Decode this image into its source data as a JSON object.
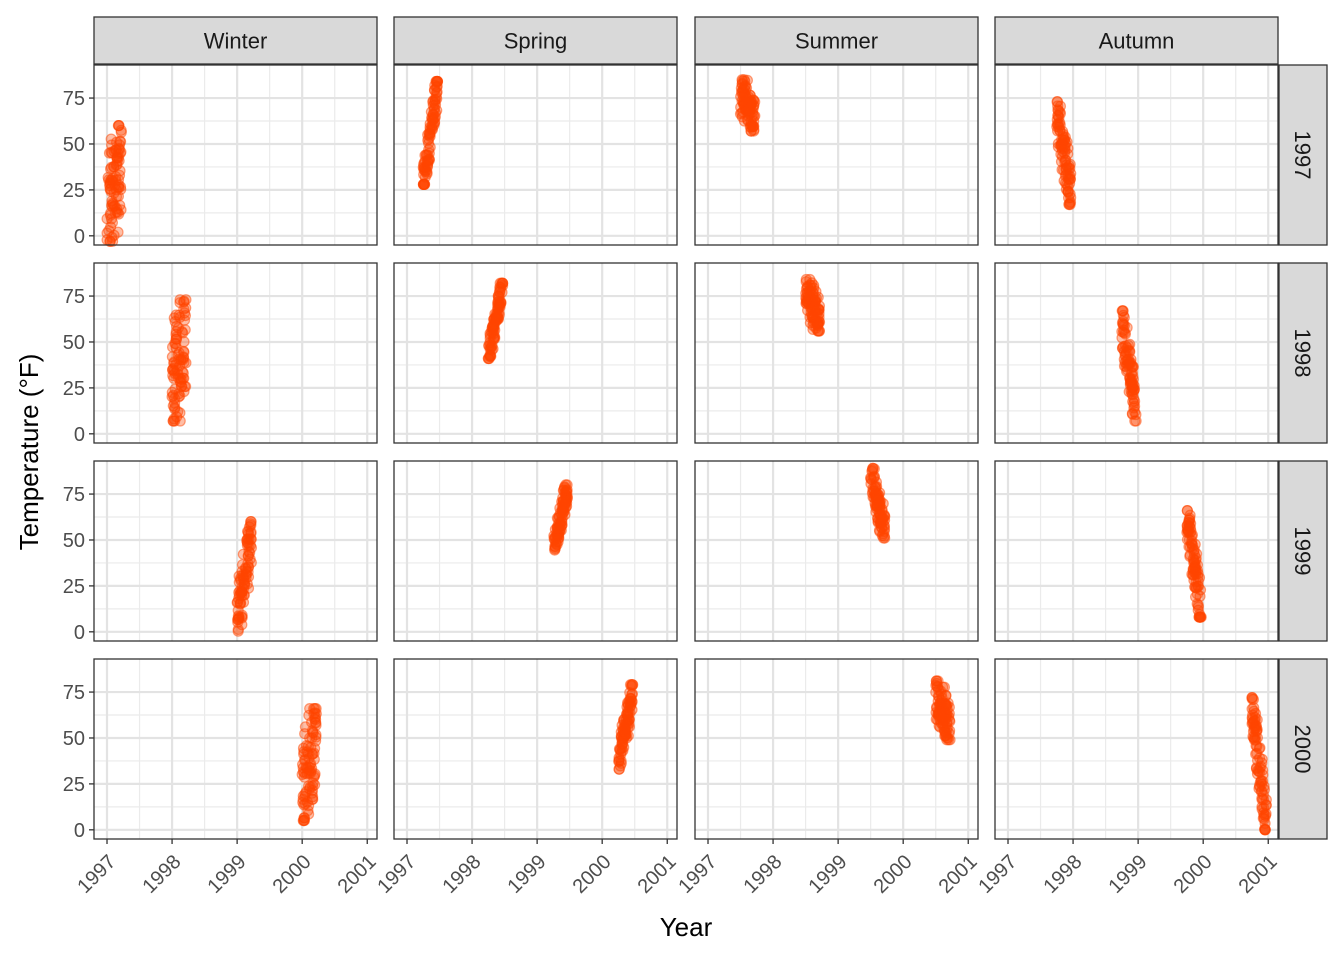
{
  "chart_data": {
    "type": "scatter",
    "xlabel": "Year",
    "ylabel": "Temperature (°F)",
    "xlim": [
      1996.8,
      2001.15
    ],
    "ylim": [
      -5,
      93
    ],
    "x_ticks": [
      "1997",
      "1998",
      "1999",
      "2000",
      "2001"
    ],
    "y_ticks": [
      "0",
      "25",
      "50",
      "75"
    ],
    "facet_cols": [
      "Winter",
      "Spring",
      "Summer",
      "Autumn"
    ],
    "facet_rows": [
      "1997",
      "1998",
      "1999",
      "2000"
    ],
    "point_color": "#FF4500",
    "point_alpha": 0.35,
    "grid": true,
    "panels": [
      {
        "season": "Winter",
        "year": "1997",
        "x_start": 1997.0,
        "x_end": 1997.22,
        "y_min": -3,
        "y_max": 60,
        "n": 90,
        "trend": 0.45
      },
      {
        "season": "Spring",
        "year": "1997",
        "x_start": 1997.25,
        "x_end": 1997.47,
        "y_min": 28,
        "y_max": 84,
        "n": 90,
        "trend": 0.95
      },
      {
        "season": "Summer",
        "year": "1997",
        "x_start": 1997.5,
        "x_end": 1997.72,
        "y_min": 57,
        "y_max": 85,
        "n": 90,
        "trend": -0.6
      },
      {
        "season": "Autumn",
        "year": "1997",
        "x_start": 1997.75,
        "x_end": 1997.97,
        "y_min": 17,
        "y_max": 73,
        "n": 90,
        "trend": -0.8
      },
      {
        "season": "Winter",
        "year": "1998",
        "x_start": 1998.0,
        "x_end": 1998.22,
        "y_min": 7,
        "y_max": 73,
        "n": 90,
        "trend": 0.45
      },
      {
        "season": "Spring",
        "year": "1998",
        "x_start": 1998.25,
        "x_end": 1998.47,
        "y_min": 41,
        "y_max": 82,
        "n": 90,
        "trend": 0.95
      },
      {
        "season": "Summer",
        "year": "1998",
        "x_start": 1998.5,
        "x_end": 1998.72,
        "y_min": 56,
        "y_max": 84,
        "n": 90,
        "trend": -0.6
      },
      {
        "season": "Autumn",
        "year": "1998",
        "x_start": 1998.75,
        "x_end": 1998.97,
        "y_min": 7,
        "y_max": 67,
        "n": 90,
        "trend": -0.85
      },
      {
        "season": "Winter",
        "year": "1999",
        "x_start": 1999.0,
        "x_end": 1999.22,
        "y_min": -3,
        "y_max": 60,
        "n": 90,
        "trend": 0.8
      },
      {
        "season": "Spring",
        "year": "1999",
        "x_start": 1999.25,
        "x_end": 1999.47,
        "y_min": 42,
        "y_max": 80,
        "n": 90,
        "trend": 0.9
      },
      {
        "season": "Summer",
        "year": "1999",
        "x_start": 1999.5,
        "x_end": 1999.72,
        "y_min": 51,
        "y_max": 89,
        "n": 90,
        "trend": -0.8
      },
      {
        "season": "Autumn",
        "year": "1999",
        "x_start": 1999.75,
        "x_end": 1999.97,
        "y_min": 8,
        "y_max": 66,
        "n": 90,
        "trend": -0.85
      },
      {
        "season": "Winter",
        "year": "2000",
        "x_start": 2000.0,
        "x_end": 2000.22,
        "y_min": 5,
        "y_max": 66,
        "n": 90,
        "trend": 0.55
      },
      {
        "season": "Spring",
        "year": "2000",
        "x_start": 2000.25,
        "x_end": 2000.47,
        "y_min": 33,
        "y_max": 79,
        "n": 90,
        "trend": 0.85
      },
      {
        "season": "Summer",
        "year": "2000",
        "x_start": 2000.5,
        "x_end": 2000.72,
        "y_min": 49,
        "y_max": 81,
        "n": 90,
        "trend": -0.6
      },
      {
        "season": "Autumn",
        "year": "2000",
        "x_start": 2000.75,
        "x_end": 2000.97,
        "y_min": 0,
        "y_max": 72,
        "n": 90,
        "trend": -0.9
      }
    ]
  }
}
